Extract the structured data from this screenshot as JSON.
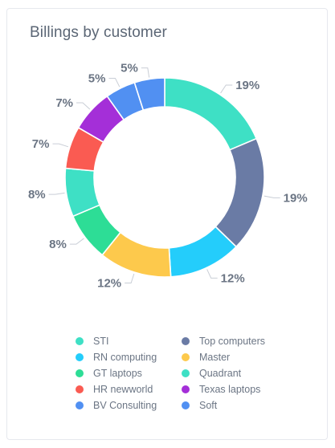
{
  "card": {
    "title": "Billings by customer"
  },
  "chart_data": {
    "type": "donut",
    "title": "Billings by customer",
    "unit": "%",
    "legend_position": "bottom",
    "categories": [
      "STI",
      "Top computers",
      "RN computing",
      "Master",
      "GT laptops",
      "Quadrant",
      "HR newworld",
      "Texas laptops",
      "BV Consulting",
      "Soft"
    ],
    "values": [
      19,
      19,
      12,
      12,
      8,
      8,
      7,
      7,
      5,
      5
    ],
    "labels": [
      "19%",
      "19%",
      "12%",
      "12%",
      "8%",
      "8%",
      "7%",
      "7%",
      "5%",
      "5%"
    ],
    "colors": [
      "#3ee0c5",
      "#6a7ba5",
      "#24cdfb",
      "#fdc94c",
      "#2ddd96",
      "#3ee0c5",
      "#fa5b52",
      "#a42fd8",
      "#5190f2",
      "#5190f2"
    ]
  },
  "legend": {
    "items": [
      {
        "label": "STI",
        "color": "#3ee0c5"
      },
      {
        "label": "Top computers",
        "color": "#6a7ba5"
      },
      {
        "label": "RN computing",
        "color": "#24cdfb"
      },
      {
        "label": "Master",
        "color": "#fdc94c"
      },
      {
        "label": "GT laptops",
        "color": "#2ddd96"
      },
      {
        "label": "Quadrant",
        "color": "#3ee0c5"
      },
      {
        "label": "HR newworld",
        "color": "#fa5b52"
      },
      {
        "label": "Texas laptops",
        "color": "#a42fd8"
      },
      {
        "label": "BV Consulting",
        "color": "#5190f2"
      },
      {
        "label": "Soft",
        "color": "#5190f2"
      }
    ]
  }
}
